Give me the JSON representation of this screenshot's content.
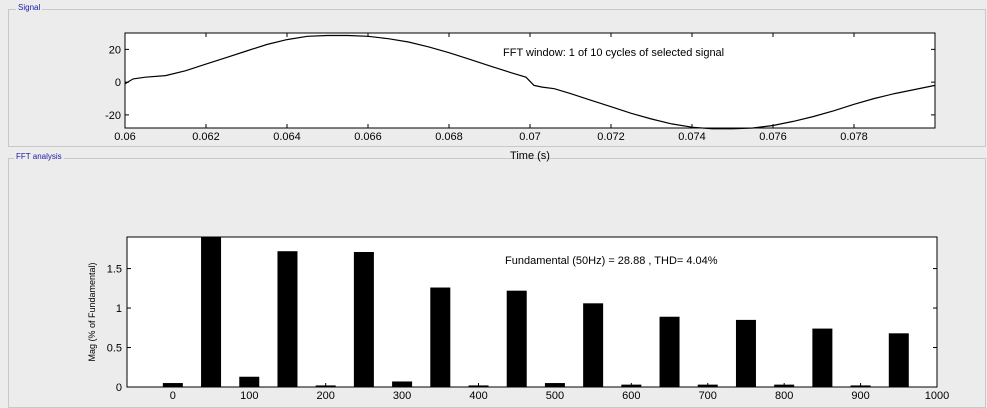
{
  "panels": {
    "signal_title": "Signal",
    "fft_title": "FFT analysis"
  },
  "colors": {
    "background": "#ececec",
    "plot_bg": "#ffffff",
    "bar": "#000000",
    "line": "#000000",
    "panel_title": "#1a1aa8"
  },
  "chart_data": [
    {
      "type": "line",
      "annotation": "FFT window: 1 of 10 cycles of selected signal",
      "xlabel": "Time (s)",
      "ylabel": "",
      "xlim": [
        0.06,
        0.08
      ],
      "ylim": [
        -28,
        30
      ],
      "x_ticks": [
        0.06,
        0.062,
        0.064,
        0.066,
        0.068,
        0.07,
        0.072,
        0.074,
        0.076,
        0.078
      ],
      "x_tick_labels": [
        "0.06",
        "0.062",
        "0.064",
        "0.066",
        "0.068",
        "0.07",
        "0.072",
        "0.074",
        "0.076",
        "0.078"
      ],
      "y_ticks": [
        20,
        0,
        -20
      ],
      "y_tick_labels": [
        "20",
        "0",
        "-20"
      ],
      "series": [
        {
          "x": [
            0.06,
            0.0602,
            0.0605,
            0.061,
            0.0615,
            0.062,
            0.0625,
            0.063,
            0.0635,
            0.064,
            0.0645,
            0.065,
            0.0655,
            0.066,
            0.0665,
            0.067,
            0.0675,
            0.068,
            0.0685,
            0.069,
            0.0695,
            0.0699,
            0.0701,
            0.0703,
            0.0706,
            0.071,
            0.0715,
            0.072,
            0.0725,
            0.073,
            0.0735,
            0.074,
            0.0745,
            0.075,
            0.0755,
            0.076,
            0.0765,
            0.077,
            0.0775,
            0.078,
            0.0785,
            0.079,
            0.0795,
            0.08
          ],
          "values": [
            -1,
            2,
            3,
            4,
            7,
            11,
            15,
            19,
            23,
            26,
            28,
            28.5,
            28.5,
            28,
            26.5,
            24.5,
            21.5,
            18,
            14,
            10,
            6,
            3,
            -2,
            -3,
            -4,
            -7,
            -11,
            -15,
            -19,
            -22.5,
            -25.5,
            -27.5,
            -28.5,
            -28.5,
            -28,
            -26.5,
            -24,
            -21,
            -17.5,
            -13.5,
            -10,
            -7,
            -4.5,
            -2
          ]
        }
      ]
    },
    {
      "type": "bar",
      "annotation": "Fundamental (50Hz) = 28.88 , THD= 4.04%",
      "xlabel": "",
      "ylabel": "Mag (% of Fundamental)",
      "xlim": [
        -60,
        1000
      ],
      "ylim": [
        0,
        1.9
      ],
      "x_ticks": [
        0,
        100,
        200,
        300,
        400,
        500,
        600,
        700,
        800,
        900,
        1000
      ],
      "x_tick_labels": [
        "0",
        "100",
        "200",
        "300",
        "400",
        "500",
        "600",
        "700",
        "800",
        "900",
        "1000"
      ],
      "y_ticks": [
        0,
        0.5,
        1,
        1.5
      ],
      "y_tick_labels": [
        "0",
        "0.5",
        "1",
        "1.5"
      ],
      "x": [
        0,
        50,
        100,
        150,
        200,
        250,
        300,
        350,
        400,
        450,
        500,
        550,
        600,
        650,
        700,
        750,
        800,
        850,
        900,
        950
      ],
      "values": [
        0.05,
        1.9,
        0.13,
        1.72,
        0.02,
        1.71,
        0.07,
        1.26,
        0.02,
        1.22,
        0.05,
        1.06,
        0.03,
        0.89,
        0.03,
        0.85,
        0.03,
        0.74,
        0.02,
        0.68
      ]
    }
  ]
}
